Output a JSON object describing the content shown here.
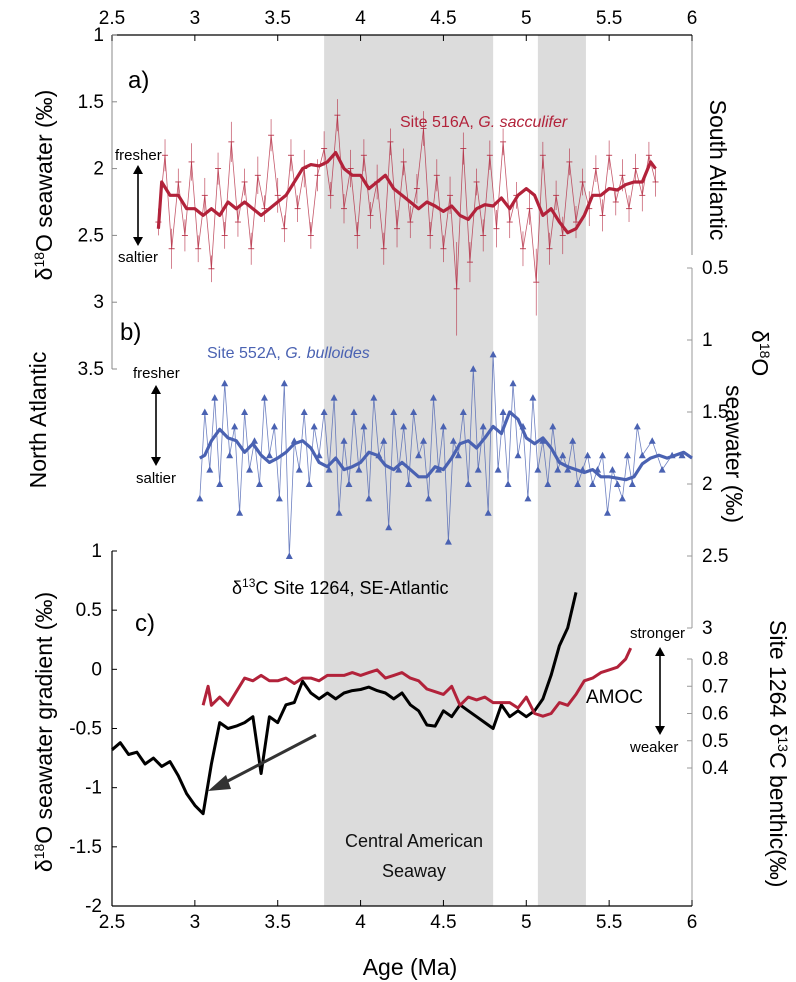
{
  "chart_data": [
    {
      "panel": "a)",
      "type": "line",
      "site_label_plain": "Site 516A, ",
      "site_label_species": "G. sacculifer",
      "region": "South Atlantic",
      "ylabel_pre": "δ",
      "ylabel_sup": "18",
      "ylabel_post": "O seawater (‰)",
      "ylim": [
        1,
        3.6
      ],
      "yticks": [
        "1",
        "1.5",
        "2",
        "2.5",
        "3",
        "3.5"
      ],
      "annot_top": "fresher",
      "annot_bottom": "saltier",
      "raw_x": [
        2.78,
        2.82,
        2.86,
        2.9,
        2.94,
        2.98,
        3.02,
        3.06,
        3.1,
        3.14,
        3.18,
        3.22,
        3.26,
        3.3,
        3.34,
        3.38,
        3.42,
        3.46,
        3.5,
        3.54,
        3.58,
        3.62,
        3.66,
        3.7,
        3.74,
        3.78,
        3.82,
        3.86,
        3.9,
        3.94,
        3.98,
        4.02,
        4.06,
        4.1,
        4.14,
        4.18,
        4.22,
        4.26,
        4.3,
        4.34,
        4.38,
        4.42,
        4.46,
        4.5,
        4.54,
        4.58,
        4.62,
        4.66,
        4.7,
        4.74,
        4.78,
        4.82,
        4.86,
        4.9,
        4.94,
        4.98,
        5.02,
        5.06,
        5.1,
        5.14,
        5.18,
        5.22,
        5.26,
        5.3,
        5.34,
        5.38,
        5.42,
        5.46,
        5.5,
        5.54,
        5.58,
        5.62,
        5.66,
        5.7,
        5.74,
        5.78
      ],
      "raw_y": [
        2.4,
        1.9,
        2.6,
        2.1,
        2.5,
        1.95,
        2.6,
        2.2,
        2.75,
        2.0,
        2.5,
        1.8,
        2.4,
        2.1,
        2.6,
        2.05,
        2.3,
        1.75,
        2.2,
        2.45,
        1.9,
        2.3,
        2.0,
        2.5,
        2.05,
        1.85,
        2.2,
        1.6,
        2.3,
        2.0,
        2.5,
        1.9,
        2.35,
        2.1,
        2.6,
        1.8,
        2.45,
        1.95,
        2.4,
        2.15,
        1.7,
        2.5,
        2.05,
        2.6,
        2.2,
        2.9,
        1.85,
        2.7,
        2.1,
        2.5,
        1.9,
        2.45,
        1.8,
        2.4,
        2.2,
        2.6,
        2.3,
        2.85,
        1.9,
        2.6,
        2.2,
        2.5,
        1.95,
        2.4,
        2.1,
        2.3,
        2.0,
        2.35,
        1.9,
        2.25,
        2.05,
        2.3,
        2.0,
        2.2,
        1.9,
        2.1
      ],
      "raw_err": [
        0.1,
        0.12,
        0.15,
        0.1,
        0.12,
        0.14,
        0.1,
        0.13,
        0.1,
        0.12,
        0.1,
        0.15,
        0.11,
        0.1,
        0.12,
        0.14,
        0.1,
        0.12,
        0.13,
        0.1,
        0.12,
        0.1,
        0.14,
        0.1,
        0.12,
        0.13,
        0.1,
        0.12,
        0.11,
        0.14,
        0.1,
        0.12,
        0.1,
        0.13,
        0.12,
        0.1,
        0.14,
        0.1,
        0.12,
        0.11,
        0.13,
        0.1,
        0.12,
        0.1,
        0.14,
        0.35,
        0.12,
        0.15,
        0.1,
        0.12,
        0.11,
        0.14,
        0.1,
        0.12,
        0.1,
        0.13,
        0.12,
        0.25,
        0.1,
        0.12,
        0.11,
        0.14,
        0.1,
        0.12,
        0.1,
        0.13,
        0.1,
        0.12,
        0.11,
        0.1,
        0.12,
        0.1,
        0.11,
        0.12,
        0.1,
        0.11
      ],
      "smooth_x": [
        2.78,
        2.8,
        2.85,
        2.9,
        2.95,
        3.0,
        3.05,
        3.1,
        3.15,
        3.2,
        3.25,
        3.3,
        3.35,
        3.4,
        3.45,
        3.5,
        3.55,
        3.6,
        3.65,
        3.7,
        3.75,
        3.8,
        3.85,
        3.9,
        3.95,
        4.0,
        4.05,
        4.1,
        4.15,
        4.2,
        4.25,
        4.3,
        4.35,
        4.4,
        4.45,
        4.5,
        4.55,
        4.6,
        4.65,
        4.7,
        4.75,
        4.8,
        4.85,
        4.9,
        4.95,
        5.0,
        5.05,
        5.1,
        5.15,
        5.2,
        5.25,
        5.3,
        5.35,
        5.4,
        5.45,
        5.5,
        5.55,
        5.6,
        5.65,
        5.7,
        5.75,
        5.78
      ],
      "smooth_y": [
        2.45,
        2.1,
        2.2,
        2.2,
        2.3,
        2.3,
        2.35,
        2.3,
        2.35,
        2.25,
        2.3,
        2.25,
        2.3,
        2.35,
        2.3,
        2.25,
        2.2,
        2.1,
        2.0,
        1.97,
        1.98,
        1.95,
        1.88,
        2.0,
        2.05,
        2.05,
        2.15,
        2.1,
        2.05,
        2.15,
        2.2,
        2.25,
        2.3,
        2.25,
        2.28,
        2.32,
        2.28,
        2.35,
        2.38,
        2.3,
        2.27,
        2.28,
        2.22,
        2.3,
        2.2,
        2.15,
        2.2,
        2.35,
        2.3,
        2.4,
        2.48,
        2.45,
        2.35,
        2.2,
        2.2,
        2.15,
        2.16,
        2.12,
        2.1,
        2.1,
        1.95,
        2.0
      ]
    },
    {
      "panel": "b)",
      "type": "line",
      "site_label_plain": "Site 552A, ",
      "site_label_species": "G. bulloides",
      "region": "North Atlantic",
      "ylabel_pre": "δ",
      "ylabel_sup": "18",
      "ylabel_line1": "O",
      "ylabel_line2": "seawater (‰)",
      "ylim": [
        0.5,
        3
      ],
      "yticks": [
        "0.5",
        "1",
        "1.5",
        "2",
        "2.5",
        "3"
      ],
      "annot_top": "fresher",
      "annot_bottom": "saltier",
      "raw_x": [
        3.03,
        3.06,
        3.09,
        3.12,
        3.15,
        3.18,
        3.21,
        3.24,
        3.27,
        3.3,
        3.33,
        3.36,
        3.39,
        3.42,
        3.45,
        3.48,
        3.51,
        3.54,
        3.57,
        3.6,
        3.63,
        3.66,
        3.69,
        3.72,
        3.75,
        3.78,
        3.81,
        3.84,
        3.87,
        3.9,
        3.93,
        3.96,
        3.99,
        4.02,
        4.05,
        4.08,
        4.11,
        4.14,
        4.17,
        4.2,
        4.23,
        4.26,
        4.29,
        4.32,
        4.35,
        4.38,
        4.41,
        4.44,
        4.47,
        4.5,
        4.53,
        4.56,
        4.59,
        4.62,
        4.65,
        4.68,
        4.71,
        4.74,
        4.77,
        4.8,
        4.83,
        4.86,
        4.89,
        4.92,
        4.95,
        4.98,
        5.01,
        5.04,
        5.07,
        5.1,
        5.13,
        5.16,
        5.19,
        5.22,
        5.25,
        5.28,
        5.31,
        5.34,
        5.37,
        5.4,
        5.43,
        5.46,
        5.49,
        5.52,
        5.55,
        5.58,
        5.61,
        5.64,
        5.67,
        5.7,
        5.76,
        5.82,
        5.88,
        5.94
      ],
      "raw_y": [
        2.1,
        1.5,
        1.9,
        1.4,
        2.0,
        1.3,
        1.8,
        1.6,
        2.2,
        1.5,
        1.9,
        1.7,
        2.0,
        1.4,
        1.8,
        1.6,
        2.1,
        1.3,
        2.5,
        1.7,
        1.9,
        1.5,
        2.0,
        1.6,
        1.8,
        1.5,
        1.9,
        1.4,
        2.2,
        1.7,
        2.0,
        1.5,
        1.9,
        1.6,
        2.1,
        1.4,
        1.8,
        1.7,
        2.3,
        1.5,
        1.9,
        1.6,
        2.0,
        1.5,
        1.8,
        1.7,
        2.1,
        1.4,
        1.9,
        1.6,
        2.4,
        1.7,
        1.8,
        1.5,
        2.0,
        1.2,
        1.9,
        1.6,
        2.2,
        1.1,
        1.9,
        1.5,
        2.0,
        1.3,
        1.8,
        1.6,
        2.1,
        1.4,
        1.9,
        1.7,
        2.0,
        1.6,
        1.9,
        1.8,
        1.9,
        1.7,
        2.0,
        1.9,
        1.8,
        2.0,
        1.9,
        1.8,
        2.2,
        1.9,
        2.0,
        2.1,
        1.8,
        2.0,
        1.6,
        1.8,
        1.7,
        1.9,
        1.8,
        1.8
      ],
      "smooth_x": [
        3.03,
        3.06,
        3.1,
        3.15,
        3.2,
        3.25,
        3.3,
        3.35,
        3.4,
        3.45,
        3.5,
        3.55,
        3.6,
        3.65,
        3.7,
        3.75,
        3.8,
        3.85,
        3.9,
        3.95,
        4.0,
        4.05,
        4.1,
        4.15,
        4.2,
        4.25,
        4.3,
        4.35,
        4.4,
        4.45,
        4.5,
        4.55,
        4.6,
        4.65,
        4.7,
        4.75,
        4.8,
        4.85,
        4.9,
        4.95,
        5.0,
        5.05,
        5.1,
        5.15,
        5.2,
        5.25,
        5.3,
        5.35,
        5.4,
        5.45,
        5.5,
        5.55,
        5.6,
        5.65,
        5.7,
        5.75,
        5.8,
        5.85,
        5.9,
        5.95,
        6.0
      ],
      "smooth_y": [
        1.82,
        1.8,
        1.7,
        1.62,
        1.68,
        1.7,
        1.78,
        1.72,
        1.8,
        1.85,
        1.82,
        1.78,
        1.72,
        1.7,
        1.75,
        1.85,
        1.88,
        1.82,
        1.9,
        1.88,
        1.85,
        1.78,
        1.8,
        1.87,
        1.9,
        1.85,
        1.9,
        1.95,
        1.95,
        1.88,
        1.9,
        1.82,
        1.72,
        1.7,
        1.75,
        1.68,
        1.6,
        1.65,
        1.5,
        1.55,
        1.68,
        1.72,
        1.68,
        1.75,
        1.85,
        1.88,
        1.9,
        1.92,
        1.9,
        1.95,
        1.95,
        1.96,
        1.97,
        1.95,
        1.86,
        1.82,
        1.8,
        1.82,
        1.8,
        1.78,
        1.82
      ]
    },
    {
      "panel": "c)",
      "type": "line",
      "title_pre": "δ",
      "title_sup": "13",
      "title_post": "C Site 1264, SE-Atlantic",
      "ylabel_pre": "δ",
      "ylabel_sup": "18",
      "ylabel_post": "O seawater gradient (‰)",
      "ylim": [
        -2,
        1
      ],
      "yticks": [
        "-2",
        "-1.5",
        "-1",
        "-0.5",
        "0",
        "0.5",
        "1"
      ],
      "y2label_pre": "Site 1264 δ",
      "y2label_sup": "13",
      "y2label_post": "C benthic(‰)",
      "y2lim": [
        0.35,
        0.9
      ],
      "y2ticks": [
        "0.4",
        "0.5",
        "0.6",
        "0.7",
        "0.8"
      ],
      "amoc_label": "AMOC",
      "amoc_top": "stronger",
      "amoc_bottom": "weaker",
      "series": [
        {
          "axis": "left",
          "color": "#000000",
          "x": [
            2.5,
            2.55,
            2.6,
            2.65,
            2.7,
            2.75,
            2.8,
            2.85,
            2.9,
            2.95,
            3.0,
            3.05,
            3.1,
            3.15,
            3.2,
            3.25,
            3.3,
            3.35,
            3.4,
            3.45,
            3.5,
            3.55,
            3.6,
            3.65,
            3.7,
            3.75,
            3.8,
            3.85,
            3.9,
            3.95,
            4.0,
            4.05,
            4.1,
            4.15,
            4.2,
            4.25,
            4.3,
            4.35,
            4.4,
            4.45,
            4.5,
            4.55,
            4.6,
            4.65,
            4.7,
            4.75,
            4.8,
            4.85,
            4.9,
            4.95,
            5.0,
            5.05,
            5.1,
            5.15,
            5.2,
            5.25,
            5.3
          ],
          "y": [
            -0.68,
            -0.62,
            -0.72,
            -0.7,
            -0.8,
            -0.75,
            -0.82,
            -0.78,
            -0.9,
            -1.05,
            -1.15,
            -1.22,
            -0.8,
            -0.45,
            -0.5,
            -0.48,
            -0.45,
            -0.4,
            -0.88,
            -0.4,
            -0.45,
            -0.3,
            -0.28,
            -0.1,
            -0.2,
            -0.25,
            -0.2,
            -0.25,
            -0.2,
            -0.18,
            -0.17,
            -0.15,
            -0.18,
            -0.2,
            -0.25,
            -0.2,
            -0.3,
            -0.35,
            -0.47,
            -0.48,
            -0.35,
            -0.4,
            -0.3,
            -0.35,
            -0.4,
            -0.45,
            -0.5,
            -0.3,
            -0.4,
            -0.35,
            -0.4,
            -0.35,
            -0.25,
            -0.05,
            0.2,
            0.35,
            0.65
          ]
        },
        {
          "axis": "right",
          "color": "#b2223a",
          "x": [
            3.05,
            3.08,
            3.1,
            3.15,
            3.2,
            3.25,
            3.3,
            3.35,
            3.4,
            3.45,
            3.5,
            3.55,
            3.6,
            3.65,
            3.7,
            3.75,
            3.8,
            3.85,
            3.9,
            3.95,
            4.0,
            4.05,
            4.1,
            4.15,
            4.2,
            4.25,
            4.3,
            4.35,
            4.4,
            4.45,
            4.5,
            4.55,
            4.6,
            4.65,
            4.7,
            4.75,
            4.8,
            4.85,
            4.9,
            4.95,
            5.0,
            5.05,
            5.1,
            5.15,
            5.2,
            5.25,
            5.3,
            5.35,
            5.4,
            5.45,
            5.5,
            5.55,
            5.6,
            5.63
          ],
          "y": [
            0.63,
            0.7,
            0.63,
            0.66,
            0.63,
            0.68,
            0.73,
            0.72,
            0.74,
            0.72,
            0.72,
            0.73,
            0.71,
            0.73,
            0.73,
            0.72,
            0.74,
            0.74,
            0.74,
            0.75,
            0.74,
            0.75,
            0.76,
            0.73,
            0.74,
            0.75,
            0.73,
            0.72,
            0.69,
            0.68,
            0.67,
            0.7,
            0.63,
            0.66,
            0.65,
            0.66,
            0.64,
            0.64,
            0.64,
            0.62,
            0.66,
            0.6,
            0.59,
            0.6,
            0.64,
            0.63,
            0.67,
            0.72,
            0.73,
            0.75,
            0.76,
            0.77,
            0.8,
            0.84
          ]
        }
      ]
    }
  ],
  "shared_x": {
    "xlabel": "Age (Ma)",
    "xlim": [
      2.5,
      6
    ],
    "xticks": [
      "2.5",
      "3",
      "3.5",
      "4",
      "4.5",
      "5",
      "5.5",
      "6"
    ],
    "shading": [
      [
        3.78,
        4.8
      ],
      [
        5.07,
        5.36
      ]
    ],
    "shading_label_1": "Central American",
    "shading_label_2": "Seaway"
  },
  "colors": {
    "red": "#b2223a",
    "blue": "#4a62b2",
    "shade": "#dcdcdc"
  }
}
